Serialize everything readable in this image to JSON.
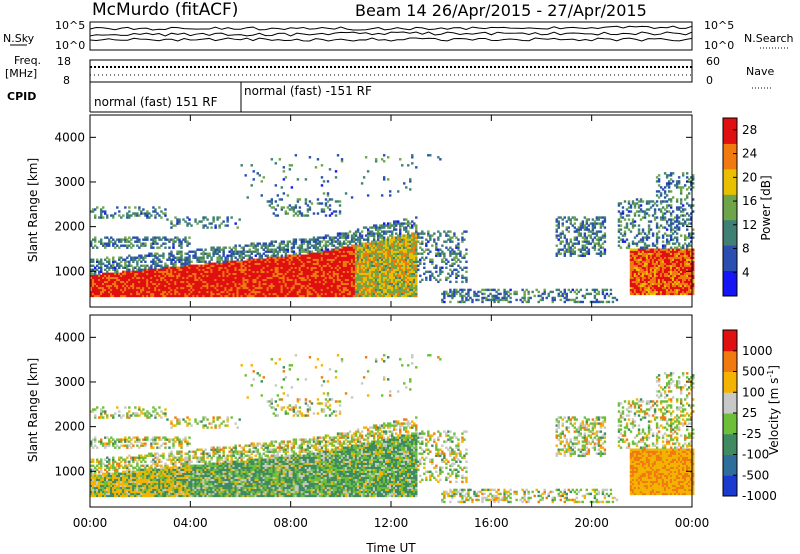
{
  "header": {
    "station": "McMurdo (fitACF)",
    "beam_date": "Beam 14   26/Apr/2015 - 27/Apr/2015"
  },
  "noise_panel": {
    "left_label": "N.Sky",
    "right_label": "N.Search",
    "left_ticks": [
      "10^5",
      "10^0"
    ],
    "right_ticks": [
      "10^5",
      "10^0"
    ]
  },
  "freq_panel": {
    "left_label_1": "Freq.",
    "left_label_2": "[MHz]",
    "left_ticks": [
      "18",
      "8"
    ],
    "right_label": "Nave",
    "right_ticks": [
      "60",
      "0"
    ]
  },
  "cpid_panel": {
    "label": "CPID",
    "segments": [
      "normal (fast) 151 RF",
      "normal (fast) -151 RF"
    ]
  },
  "chart_data": [
    {
      "type": "heatmap",
      "name": "power",
      "ylabel": "Slant Range [km]",
      "xlabel": "",
      "x_ticks": [
        "00:00",
        "04:00",
        "08:00",
        "12:00",
        "16:00",
        "20:00",
        "00:00"
      ],
      "y_ticks": [
        "1000",
        "2000",
        "3000",
        "4000"
      ],
      "ylim": [
        200,
        4500
      ],
      "xlim_hours": [
        0,
        24
      ],
      "colorbar_label": "Power [dB]",
      "colorbar_ticks": [
        "4",
        "8",
        "12",
        "16",
        "20",
        "24",
        "28"
      ],
      "colorbar_colors": [
        "#1515f5",
        "#2a4fb0",
        "#3f7f74",
        "#6ea54a",
        "#e8c000",
        "#f07a10",
        "#e01010"
      ],
      "colorbar_range": [
        0,
        30
      ]
    },
    {
      "type": "heatmap",
      "name": "velocity",
      "ylabel": "Slant Range [km]",
      "xlabel": "Time UT",
      "x_ticks": [
        "00:00",
        "04:00",
        "08:00",
        "12:00",
        "16:00",
        "20:00",
        "00:00"
      ],
      "y_ticks": [
        "1000",
        "2000",
        "3000",
        "4000"
      ],
      "ylim": [
        200,
        4500
      ],
      "xlim_hours": [
        0,
        24
      ],
      "colorbar_label": "Velocity [m s^-1]",
      "colorbar_ticks": [
        "1000",
        "500",
        "100",
        "25",
        "-25",
        "-100",
        "-500",
        "-1000"
      ],
      "colorbar_colors": [
        "#1a3ad0",
        "#2d6f9a",
        "#3f8a60",
        "#6dbf3a",
        "#c8c8c8",
        "#f2b400",
        "#f07a10",
        "#e01010"
      ]
    }
  ]
}
